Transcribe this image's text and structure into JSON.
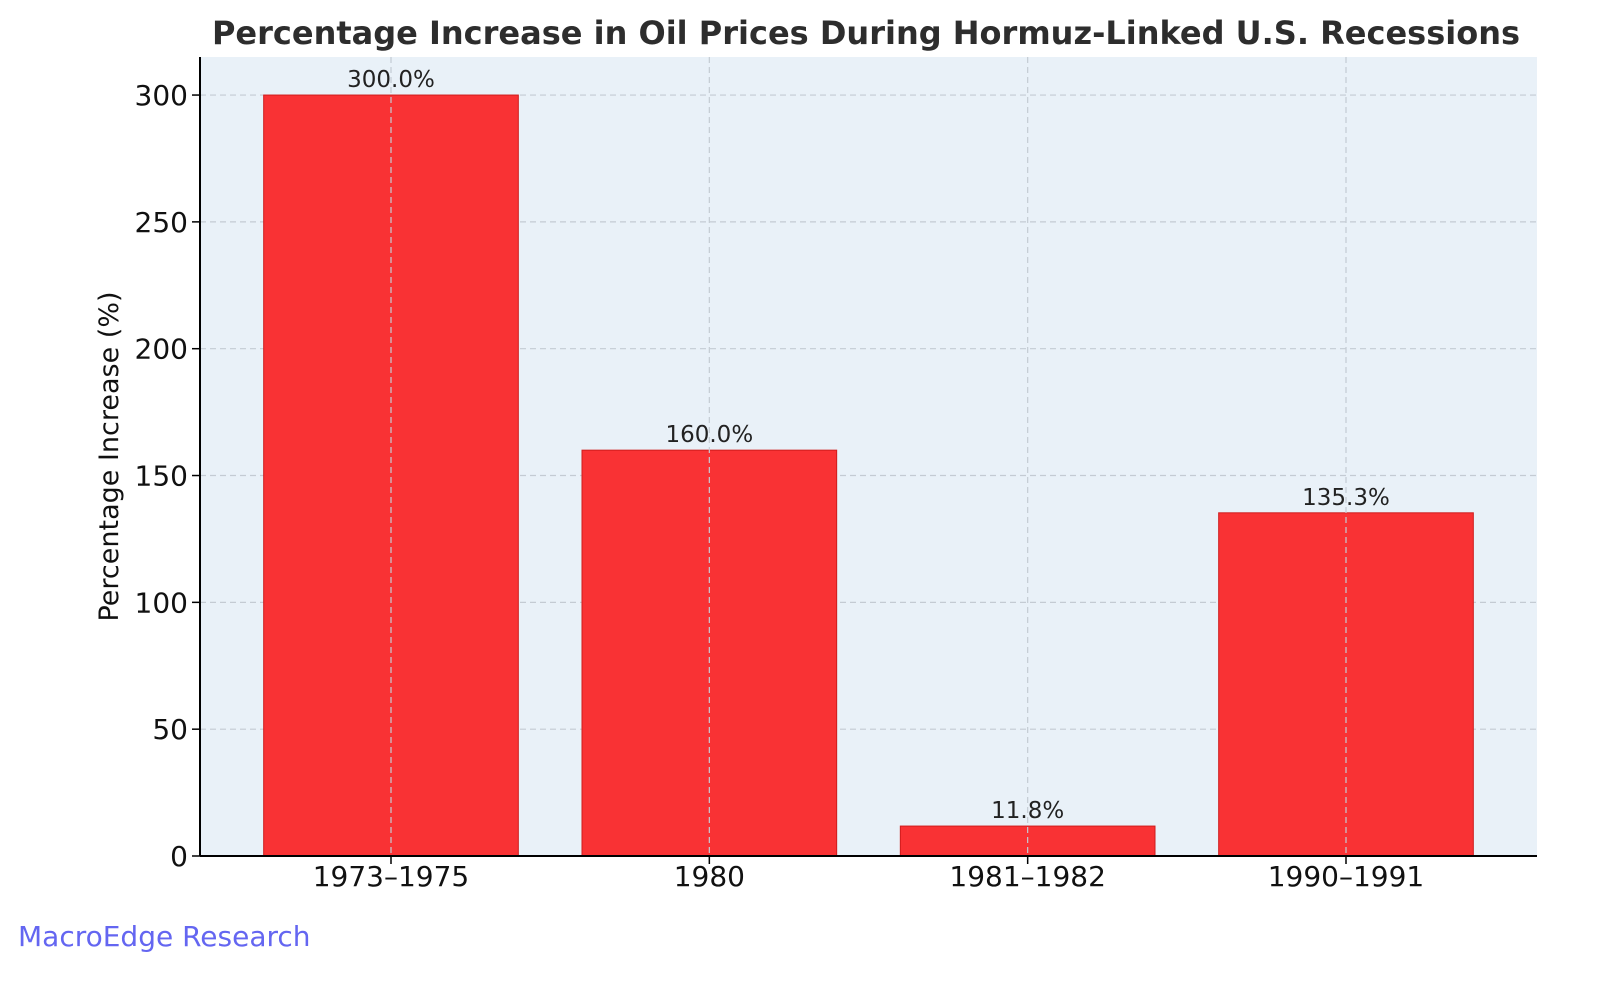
{
  "chart_data": {
    "type": "bar",
    "title": "Percentage Increase in Oil Prices During Hormuz-Linked U.S. Recessions",
    "xlabel": "",
    "ylabel": "Percentage Increase (%)",
    "categories": [
      "1973–1975",
      "1980",
      "1981–1982",
      "1990–1991"
    ],
    "values": [
      300.0,
      160.0,
      11.8,
      135.3
    ],
    "data_labels": [
      "300.0%",
      "160.0%",
      "11.8%",
      "135.3%"
    ],
    "ylim": [
      0,
      315
    ],
    "yticks": [
      0,
      50,
      100,
      150,
      200,
      250,
      300
    ],
    "grid": true,
    "legend": "none"
  },
  "colors": {
    "bar": "#f93234",
    "bar_edge": "#d01c1c",
    "plot_background": "#e9f1f8",
    "grid": "#c4cbd3",
    "axis": "#000000",
    "title": "#2d2d2d",
    "text": "#111111",
    "watermark": "#6466f1"
  },
  "watermark": {
    "text": "MacroEdge Research"
  }
}
